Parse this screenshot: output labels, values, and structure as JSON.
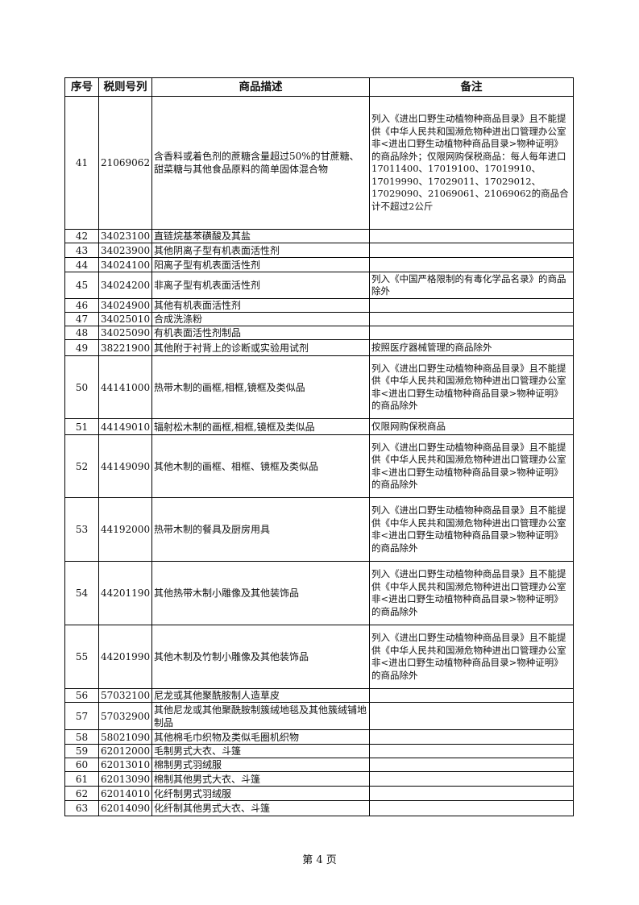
{
  "table": {
    "headers": [
      "序号",
      "税则号列",
      "商品描述",
      "备注"
    ],
    "rows": [
      [
        "41",
        "21069062",
        "含香料或着色剂的蔗糖含量超过50%的甘蔗糖、甜菜糖与其他食品原料的简单固体混合物",
        "列入《进出口野生动植物种商品目录》且不能提供《中华人民共和国濒危物种进出口管理办公室非<进出口野生动植物种商品目录>物种证明》的商品除外；仅限网购保税商品：每人每年进口17011400、17019100、17019910、17019990、17029011、17029012、17029090、21069061、21069062的商品合计不超过2公斤"
      ],
      [
        "42",
        "34023100",
        "直链烷基苯磺酸及其盐",
        ""
      ],
      [
        "43",
        "34023900",
        "其他阴离子型有机表面活性剂",
        ""
      ],
      [
        "44",
        "34024100",
        "阳离子型有机表面活性剂",
        ""
      ],
      [
        "45",
        "34024200",
        "非离子型有机表面活性剂",
        "列入《中国严格限制的有毒化学品名录》的商品除外"
      ],
      [
        "46",
        "34024900",
        "其他有机表面活性剂",
        ""
      ],
      [
        "47",
        "34025010",
        "合成洗涤粉",
        ""
      ],
      [
        "48",
        "34025090",
        "有机表面活性剂制品",
        ""
      ],
      [
        "49",
        "38221900",
        "其他附于衬背上的诊断或实验用试剂",
        "按照医疗器械管理的商品除外"
      ],
      [
        "50",
        "44141000",
        "热带木制的画框,相框,镜框及类似品",
        "列入《进出口野生动植物种商品目录》且不能提供《中华人民共和国濒危物种进出口管理办公室非<进出口野生动植物种商品目录>物种证明》的商品除外"
      ],
      [
        "51",
        "44149010",
        "辐射松木制的画框,相框,镜框及类似品",
        "仅限网购保税商品"
      ],
      [
        "52",
        "44149090",
        "其他木制的画框、相框、镜框及类似品",
        "列入《进出口野生动植物种商品目录》且不能提供《中华人民共和国濒危物种进出口管理办公室非<进出口野生动植物种商品目录>物种证明》的商品除外"
      ],
      [
        "53",
        "44192000",
        "热带木制的餐具及厨房用具",
        "列入《进出口野生动植物种商品目录》且不能提供《中华人民共和国濒危物种进出口管理办公室非<进出口野生动植物种商品目录>物种证明》的商品除外"
      ],
      [
        "54",
        "44201190",
        "其他热带木制小雕像及其他装饰品",
        "列入《进出口野生动植物种商品目录》且不能提供《中华人民共和国濒危物种进出口管理办公室非<进出口野生动植物种商品目录>物种证明》的商品除外"
      ],
      [
        "55",
        "44201990",
        "其他木制及竹制小雕像及其他装饰品",
        "列入《进出口野生动植物种商品目录》且不能提供《中华人民共和国濒危物种进出口管理办公室非<进出口野生动植物种商品目录>物种证明》的商品除外"
      ],
      [
        "56",
        "57032100",
        "尼龙或其他聚酰胺制人造草皮",
        ""
      ],
      [
        "57",
        "57032900",
        "其他尼龙或其他聚酰胺制簇绒地毯及其他簇绒铺地制品",
        ""
      ],
      [
        "58",
        "58021090",
        "其他棉毛巾织物及类似毛圈机织物",
        ""
      ],
      [
        "59",
        "62012000",
        "毛制男式大衣、斗篷",
        ""
      ],
      [
        "60",
        "62013010",
        "棉制男式羽绒服",
        ""
      ],
      [
        "61",
        "62013090",
        "棉制其他男式大衣、斗篷",
        ""
      ],
      [
        "62",
        "62014010",
        "化纤制男式羽绒服",
        ""
      ],
      [
        "63",
        "62014090",
        "化纤制其他男式大衣、斗篷",
        ""
      ]
    ]
  },
  "footer": {
    "page_label": "第 4 页"
  }
}
